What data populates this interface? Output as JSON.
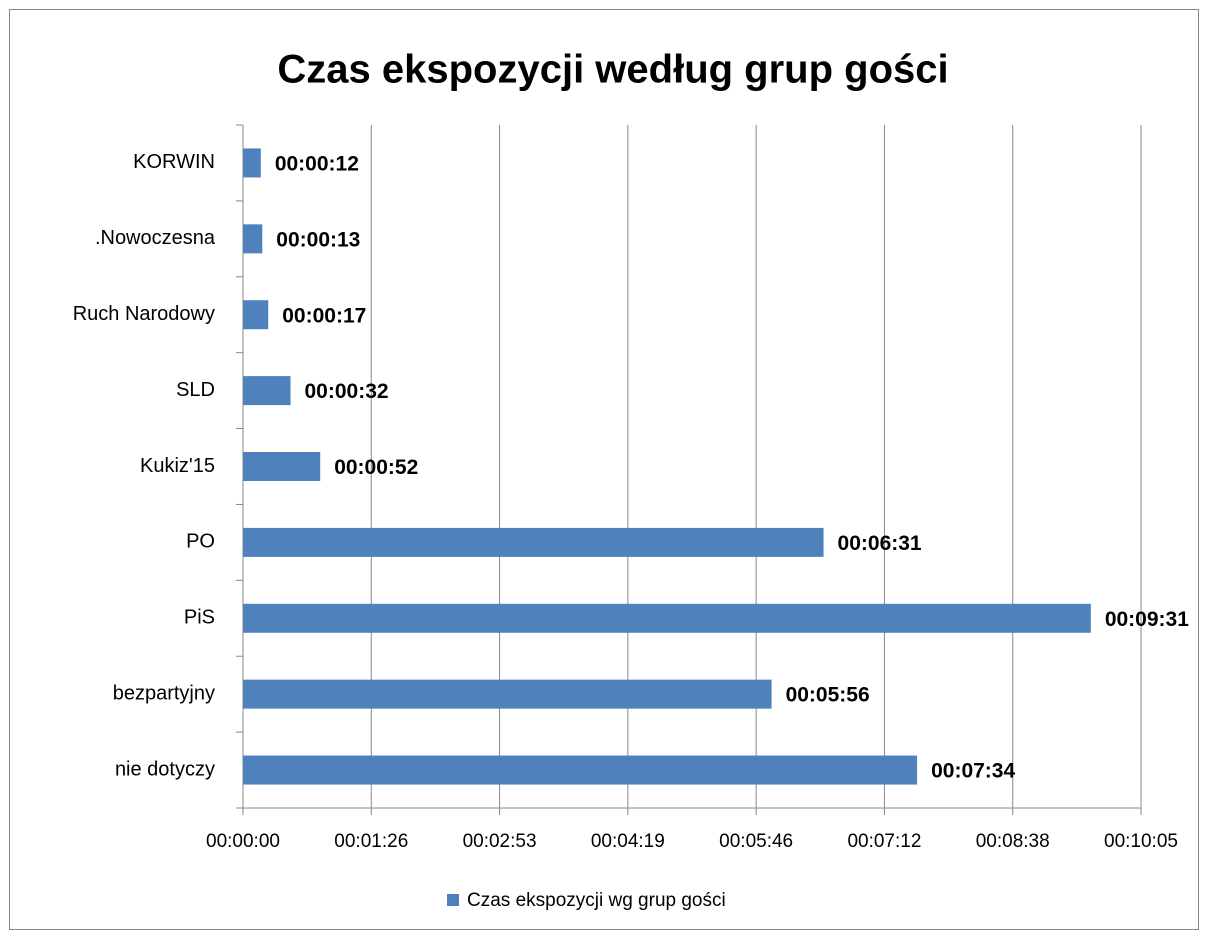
{
  "chart_data": {
    "type": "bar",
    "orientation": "horizontal",
    "title": "Czas ekspozycji według grup gości",
    "categories": [
      "KORWIN",
      ".Nowoczesna",
      "Ruch Narodowy",
      "SLD",
      "Kukiz'15",
      "PO",
      "PiS",
      "bezpartyjny",
      "nie dotyczy"
    ],
    "series": [
      {
        "name": "Czas ekspozycji wg grup gości",
        "color": "#4f81bd",
        "values": [
          12,
          13,
          17,
          32,
          52,
          391,
          571,
          356,
          454
        ],
        "value_labels": [
          "00:00:12",
          "00:00:13",
          "00:00:17",
          "00:00:32",
          "00:00:52",
          "00:06:31",
          "00:09:31",
          "00:05:56",
          "00:07:34"
        ]
      }
    ],
    "xlim": [
      0,
      604.8
    ],
    "xticks": [
      {
        "value": 0,
        "label": "00:00:00"
      },
      {
        "value": 86.4,
        "label": "00:01:26"
      },
      {
        "value": 172.8,
        "label": "00:02:53"
      },
      {
        "value": 259.2,
        "label": "00:04:19"
      },
      {
        "value": 345.6,
        "label": "00:05:46"
      },
      {
        "value": 432,
        "label": "00:07:12"
      },
      {
        "value": 518.4,
        "label": "00:08:38"
      },
      {
        "value": 604.8,
        "label": "00:10:05"
      }
    ],
    "grid": true,
    "legend": "bottom"
  }
}
